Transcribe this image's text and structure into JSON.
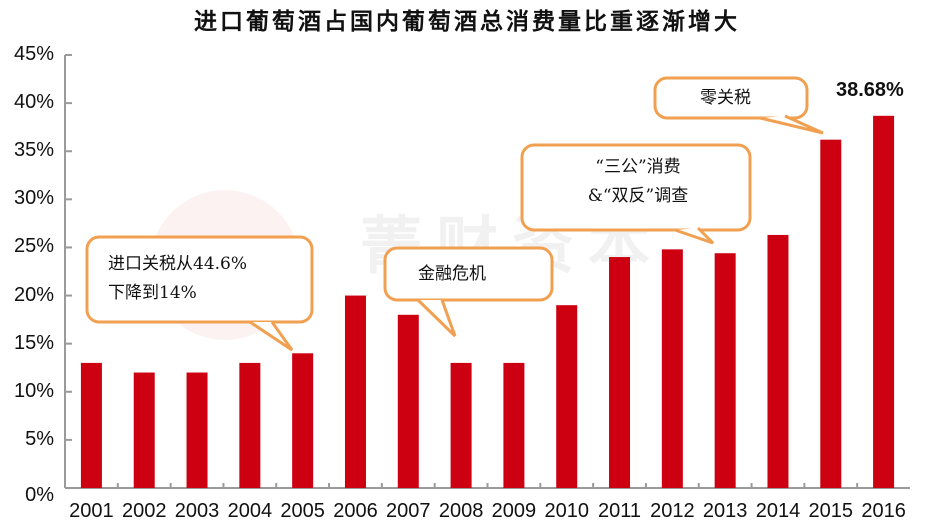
{
  "chart_data": {
    "type": "bar",
    "title": "进口葡萄酒占国内葡萄酒总消费量比重逐渐增大",
    "xlabel": "",
    "ylabel": "",
    "categories": [
      "2001",
      "2002",
      "2003",
      "2004",
      "2005",
      "2006",
      "2007",
      "2008",
      "2009",
      "2010",
      "2011",
      "2012",
      "2013",
      "2014",
      "2015",
      "2016"
    ],
    "values": [
      13,
      12,
      12,
      13,
      14,
      20,
      18,
      13,
      13,
      19,
      24,
      24.8,
      24.4,
      26.3,
      36.2,
      38.68
    ],
    "unit": "%",
    "ylim": [
      0,
      45
    ],
    "yticks": [
      "0%",
      "5%",
      "10%",
      "15%",
      "20%",
      "25%",
      "30%",
      "35%",
      "40%",
      "45%"
    ],
    "grid": false,
    "legend": null,
    "bar_color": "#cc0010",
    "data_labels": [
      {
        "category": "2016",
        "text": "38.68%"
      }
    ],
    "annotations": [
      {
        "lines": [
          "进口关税从44.6%",
          "下降到14%"
        ],
        "points_to": "2005"
      },
      {
        "lines": [
          "金融危机"
        ],
        "points_to": "2008"
      },
      {
        "lines": [
          "“三公”消费",
          "&“双反”调查"
        ],
        "points_to": "2013"
      },
      {
        "lines": [
          "零关税"
        ],
        "points_to": "2015"
      }
    ],
    "callout_border_color": "#f0a050"
  }
}
